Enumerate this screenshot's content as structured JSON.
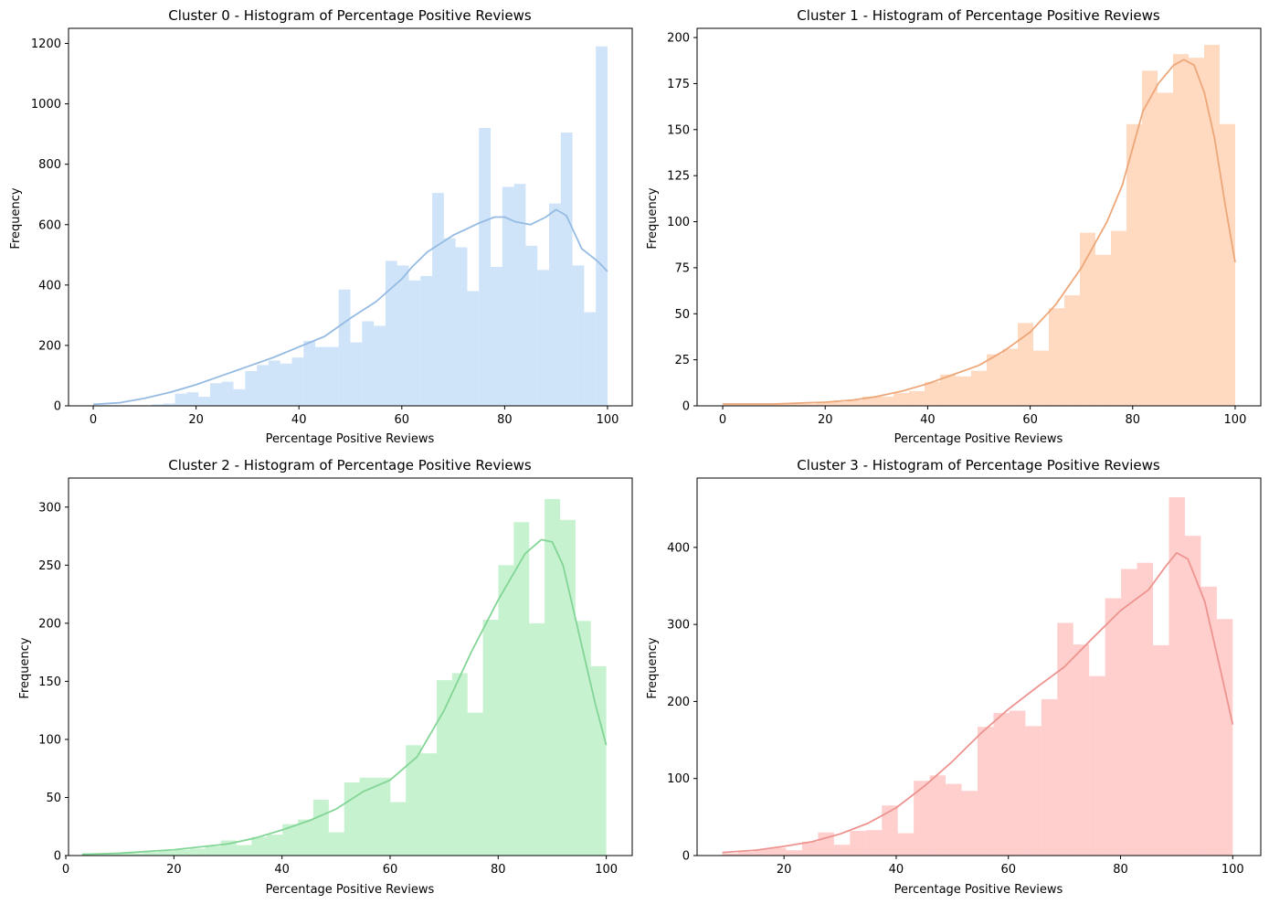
{
  "chart_data": [
    {
      "type": "bar",
      "title": "Cluster 0 - Histogram of Percentage Positive Reviews",
      "xlabel": "Percentage Positive Reviews",
      "ylabel": "Frequency",
      "xlim": [
        -4.8,
        104.8
      ],
      "ylim": [
        0,
        1250
      ],
      "xticks": [
        0,
        20,
        40,
        60,
        80,
        100
      ],
      "yticks": [
        0,
        200,
        400,
        600,
        800,
        1000,
        1200
      ],
      "color": "#a1c9f4",
      "bin_range": [
        0,
        100
      ],
      "bin_values": [
        2,
        2,
        2,
        2,
        2,
        5,
        8,
        40,
        45,
        30,
        75,
        80,
        55,
        115,
        135,
        150,
        140,
        160,
        215,
        195,
        195,
        385,
        210,
        280,
        265,
        480,
        465,
        415,
        430,
        705,
        555,
        525,
        380,
        920,
        460,
        725,
        735,
        530,
        450,
        670,
        905,
        465,
        310,
        1190
      ],
      "kde_x": [
        0,
        5,
        10,
        15,
        20,
        25,
        30,
        35,
        40,
        45,
        50,
        55,
        60,
        62,
        65,
        70,
        75,
        78,
        80,
        82,
        85,
        88,
        90,
        92,
        95,
        98,
        100
      ],
      "kde_y": [
        5,
        10,
        25,
        45,
        70,
        100,
        130,
        160,
        195,
        230,
        290,
        345,
        420,
        460,
        510,
        565,
        605,
        625,
        625,
        610,
        600,
        625,
        650,
        630,
        520,
        480,
        445
      ]
    },
    {
      "type": "bar",
      "title": "Cluster 1 - Histogram of Percentage Positive Reviews",
      "xlabel": "Percentage Positive Reviews",
      "ylabel": "Frequency",
      "xlim": [
        -5,
        105
      ],
      "ylim": [
        0,
        205
      ],
      "xticks": [
        0,
        20,
        40,
        60,
        80,
        100
      ],
      "yticks": [
        0,
        25,
        50,
        75,
        100,
        125,
        150,
        175,
        200
      ],
      "color": "#ffb482",
      "bin_range": [
        0,
        100
      ],
      "bin_values": [
        1,
        1,
        1,
        1,
        1,
        1,
        2,
        2,
        3,
        5,
        5,
        7,
        8,
        13,
        17,
        16,
        19,
        28,
        31,
        45,
        30,
        53,
        60,
        94,
        82,
        95,
        153,
        182,
        170,
        191,
        189,
        196,
        153
      ],
      "kde_x": [
        0,
        10,
        20,
        25,
        30,
        35,
        40,
        45,
        50,
        55,
        60,
        65,
        70,
        72,
        75,
        78,
        80,
        82,
        85,
        88,
        90,
        92,
        94,
        96,
        98,
        100
      ],
      "kde_y": [
        1,
        1,
        2,
        3,
        5,
        8,
        12,
        17,
        22,
        30,
        40,
        55,
        75,
        85,
        100,
        120,
        140,
        160,
        175,
        185,
        188,
        185,
        170,
        145,
        110,
        78
      ]
    },
    {
      "type": "bar",
      "title": "Cluster 2 - Histogram of Percentage Positive Reviews",
      "xlabel": "Percentage Positive Reviews",
      "ylabel": "Frequency",
      "xlim": [
        0.5,
        104.8
      ],
      "ylim": [
        0,
        325
      ],
      "xticks": [
        0,
        20,
        40,
        60,
        80,
        100
      ],
      "yticks": [
        0,
        50,
        100,
        150,
        200,
        250,
        300
      ],
      "color": "#8de5a1",
      "bin_range": [
        3,
        100
      ],
      "bin_values": [
        2,
        2,
        2,
        2,
        3,
        4,
        5,
        6,
        8,
        13,
        9,
        16,
        18,
        27,
        31,
        48,
        20,
        63,
        67,
        67,
        46,
        95,
        88,
        151,
        157,
        123,
        203,
        250,
        287,
        200,
        307,
        289,
        202,
        163
      ],
      "kde_x": [
        3,
        10,
        20,
        30,
        35,
        40,
        45,
        50,
        55,
        60,
        65,
        70,
        75,
        80,
        85,
        88,
        90,
        92,
        95,
        98,
        100
      ],
      "kde_y": [
        1,
        2,
        5,
        10,
        15,
        22,
        30,
        40,
        55,
        65,
        85,
        125,
        175,
        220,
        260,
        272,
        270,
        250,
        190,
        130,
        95
      ]
    },
    {
      "type": "bar",
      "title": "Cluster 3 - Histogram of Percentage Positive Reviews",
      "xlabel": "Percentage Positive Reviews",
      "ylabel": "Frequency",
      "xlim": [
        4.5,
        105
      ],
      "ylim": [
        0,
        490
      ],
      "xticks": [
        20,
        40,
        60,
        80,
        100
      ],
      "yticks": [
        0,
        100,
        200,
        300,
        400
      ],
      "color": "#ff9f9b",
      "bin_range": [
        9,
        100
      ],
      "bin_values": [
        3,
        5,
        8,
        10,
        7,
        18,
        30,
        14,
        32,
        33,
        65,
        29,
        97,
        104,
        93,
        84,
        167,
        185,
        188,
        168,
        203,
        302,
        274,
        233,
        334,
        372,
        380,
        273,
        465,
        415,
        349,
        307
      ],
      "kde_x": [
        9,
        15,
        20,
        25,
        30,
        35,
        40,
        45,
        50,
        55,
        60,
        65,
        70,
        75,
        80,
        85,
        88,
        90,
        92,
        95,
        98,
        100
      ],
      "kde_y": [
        4,
        7,
        12,
        18,
        28,
        42,
        62,
        90,
        122,
        158,
        190,
        218,
        245,
        282,
        318,
        345,
        375,
        393,
        385,
        330,
        235,
        170
      ]
    }
  ]
}
